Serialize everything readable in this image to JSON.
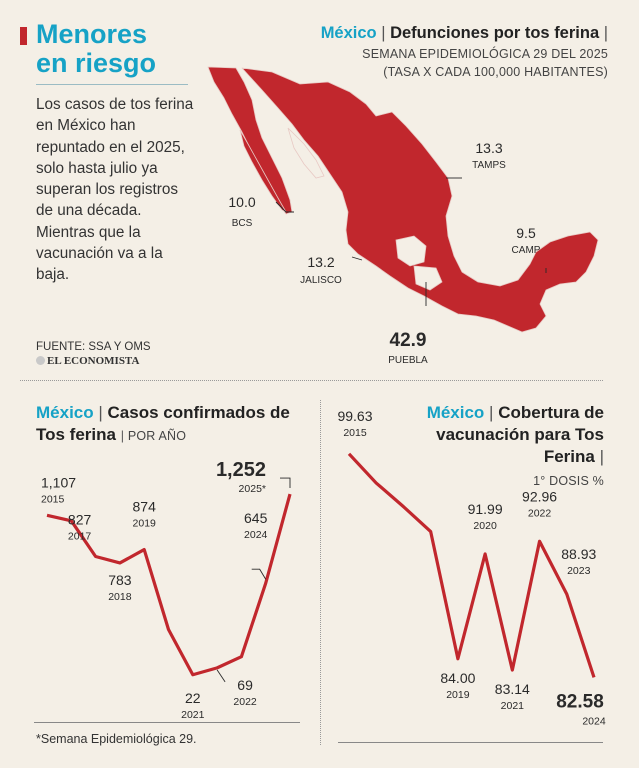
{
  "header": {
    "title_line1": "Menores",
    "title_line2": "en riesgo",
    "intro": "Los casos de tos ferina en México han repuntado en el 2025, solo hasta julio ya superan los registros de una década. Mientras que la vacunación va a la baja.",
    "source": "FUENTE: SSA Y OMS",
    "logo": "EL ECONOMISTA",
    "footnote": "*Semana Epidemiológica 29.",
    "accent_color": "#16a2c6",
    "red_color": "#c1272d"
  },
  "map": {
    "country": "México",
    "title": "Defunciones por tos ferina",
    "subtitle1": "SEMANA EPIDEMIOLÓGICA 29 DEL 2025",
    "subtitle2": "(TASA X CADA 100,000 HABITANTES)",
    "callouts": [
      {
        "value": "10.0",
        "state": "BCS"
      },
      {
        "value": "13.3",
        "state": "TAMPS"
      },
      {
        "value": "9.5",
        "state": "CAMP"
      },
      {
        "value": "13.2",
        "state": "JALISCO"
      },
      {
        "value": "42.9",
        "state": "PUEBLA"
      }
    ]
  },
  "chart_data": [
    {
      "type": "line",
      "country": "México",
      "title": "Casos confirmados de Tos ferina",
      "subtitle": "POR AÑO",
      "x": [
        2015,
        2016,
        2017,
        2018,
        2019,
        2020,
        2021,
        2022,
        2023,
        2024,
        2025
      ],
      "y": [
        1107,
        1070,
        827,
        783,
        874,
        330,
        22,
        69,
        145,
        645,
        1252
      ],
      "labels": [
        {
          "value": "1,107",
          "year": "2015"
        },
        {
          "value": "827",
          "year": "2017"
        },
        {
          "value": "783",
          "year": "2018"
        },
        {
          "value": "874",
          "year": "2019"
        },
        {
          "value": "22",
          "year": "2021"
        },
        {
          "value": "69",
          "year": "2022"
        },
        {
          "value": "645",
          "year": "2024"
        },
        {
          "value": "1,252",
          "year": "2025*"
        }
      ],
      "color": "#c1272d"
    },
    {
      "type": "line",
      "country": "México",
      "title": "Cobertura de vacunación para Tos Ferina",
      "subtitle": "1° DOSIS %",
      "x": [
        2015,
        2016,
        2017,
        2018,
        2019,
        2020,
        2021,
        2022,
        2023,
        2024
      ],
      "y": [
        99.63,
        97.4,
        95.6,
        93.7,
        84.0,
        91.99,
        83.14,
        92.96,
        88.93,
        82.58
      ],
      "labels": [
        {
          "value": "99.63",
          "year": "2015"
        },
        {
          "value": "84.00",
          "year": "2019"
        },
        {
          "value": "91.99",
          "year": "2020"
        },
        {
          "value": "83.14",
          "year": "2021"
        },
        {
          "value": "92.96",
          "year": "2022"
        },
        {
          "value": "88.93",
          "year": "2023"
        },
        {
          "value": "82.58",
          "year": "2024"
        }
      ],
      "color": "#c1272d"
    }
  ]
}
